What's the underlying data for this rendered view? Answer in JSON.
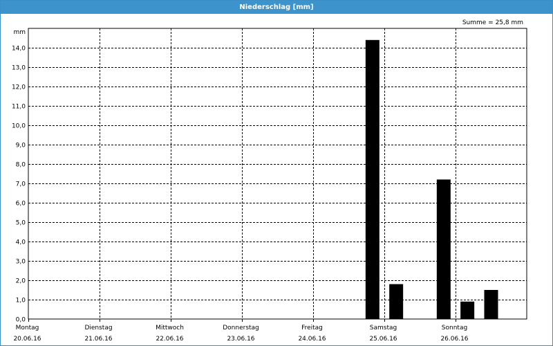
{
  "window": {
    "title": "Niederschlag [mm]"
  },
  "colors": {
    "titlebar_bg": "#3d93cc",
    "titlebar_text": "#ffffff",
    "bar": "#000000",
    "grid": "#000000"
  },
  "chart_data": {
    "type": "bar",
    "summary": "Summe = 25,8 mm",
    "y_unit": "mm",
    "ylim": [
      0,
      15
    ],
    "y_ticks": [
      "0,0",
      "1,0",
      "2,0",
      "3,0",
      "4,0",
      "5,0",
      "6,0",
      "7,0",
      "8,0",
      "9,0",
      "10,0",
      "11,0",
      "12,0",
      "13,0",
      "14,0"
    ],
    "grid": true,
    "days": [
      {
        "weekday": "Montag",
        "date": "20.06.16"
      },
      {
        "weekday": "Dienstag",
        "date": "21.06.16"
      },
      {
        "weekday": "Mittwoch",
        "date": "22.06.16"
      },
      {
        "weekday": "Donnerstag",
        "date": "23.06.16"
      },
      {
        "weekday": "Freitag",
        "date": "24.06.16"
      },
      {
        "weekday": "Samstag",
        "date": "25.06.16"
      },
      {
        "weekday": "Sonntag",
        "date": "26.06.16"
      }
    ],
    "x": [
      "20.06.16 00:00",
      "20.06.16 08:00",
      "20.06.16 16:00",
      "21.06.16 00:00",
      "21.06.16 08:00",
      "21.06.16 16:00",
      "22.06.16 00:00",
      "22.06.16 08:00",
      "22.06.16 16:00",
      "23.06.16 00:00",
      "23.06.16 08:00",
      "23.06.16 16:00",
      "24.06.16 00:00",
      "24.06.16 08:00",
      "24.06.16 16:00",
      "25.06.16 00:00",
      "25.06.16 08:00",
      "25.06.16 16:00",
      "26.06.16 00:00",
      "26.06.16 08:00",
      "26.06.16 16:00"
    ],
    "values": [
      0,
      0,
      0,
      0,
      0,
      0,
      0,
      0,
      0,
      0,
      0,
      0,
      0,
      0,
      14.4,
      1.8,
      0,
      7.2,
      0.9,
      1.5,
      0
    ]
  }
}
